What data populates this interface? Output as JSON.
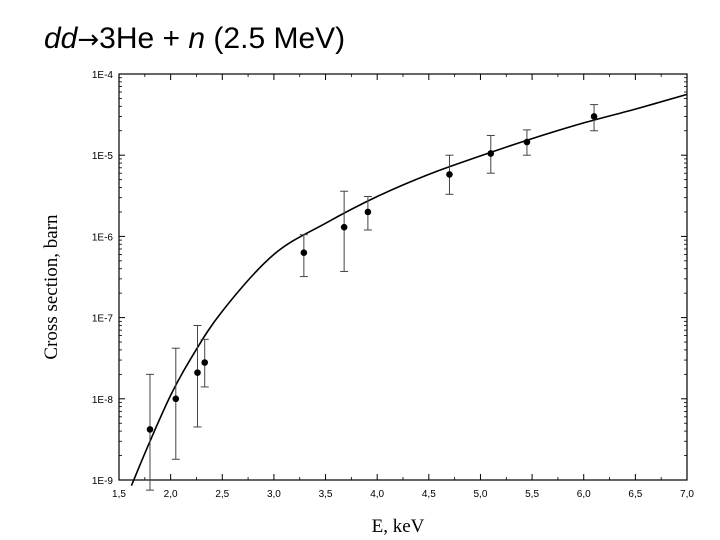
{
  "title": {
    "part1": "dd",
    "arrow": "→",
    "part2": "3He + ",
    "part3": "n",
    "part4": " (2.5 MeV)"
  },
  "chart_data": {
    "type": "scatter",
    "xlabel": "E, keV",
    "ylabel": "Cross section, barn",
    "xlim": [
      1.5,
      7.0
    ],
    "ylim": [
      1e-09,
      0.0001
    ],
    "yscale": "log",
    "grid": false,
    "x_ticks": [
      "1,5",
      "2,0",
      "2,5",
      "3,0",
      "3,5",
      "4,0",
      "4,5",
      "5,0",
      "5,5",
      "6,0",
      "6,5",
      "7,0"
    ],
    "y_ticks": [
      "1E-4",
      "1E-5",
      "1E-6",
      "1E-7",
      "1E-8",
      "1E-9"
    ],
    "points": [
      {
        "x": 1.8,
        "y": 4.2e-09,
        "ylo": 7.5e-10,
        "yhi": 2e-08
      },
      {
        "x": 2.05,
        "y": 1e-08,
        "ylo": 1.8e-09,
        "yhi": 4.2e-08
      },
      {
        "x": 2.26,
        "y": 2.1e-08,
        "ylo": 4.5e-09,
        "yhi": 8e-08
      },
      {
        "x": 2.33,
        "y": 2.8e-08,
        "ylo": 1.4e-08,
        "yhi": 5.4e-08
      },
      {
        "x": 3.29,
        "y": 6.3e-07,
        "ylo": 3.2e-07,
        "yhi": 1.05e-06
      },
      {
        "x": 3.68,
        "y": 1.3e-06,
        "ylo": 3.7e-07,
        "yhi": 3.6e-06
      },
      {
        "x": 3.91,
        "y": 2e-06,
        "ylo": 1.2e-06,
        "yhi": 3.1e-06
      },
      {
        "x": 4.7,
        "y": 5.8e-06,
        "ylo": 3.3e-06,
        "yhi": 1e-05
      },
      {
        "x": 5.1,
        "y": 1.05e-05,
        "ylo": 6e-06,
        "yhi": 1.75e-05
      },
      {
        "x": 5.45,
        "y": 1.45e-05,
        "ylo": 1e-05,
        "yhi": 2.05e-05
      },
      {
        "x": 6.1,
        "y": 3e-05,
        "ylo": 2e-05,
        "yhi": 4.2e-05
      }
    ],
    "fit_curve": {
      "x": [
        1.62,
        1.8,
        2.0,
        2.2,
        2.5,
        3.0,
        3.5,
        4.0,
        4.5,
        5.0,
        5.5,
        6.0,
        6.5,
        7.0
      ],
      "y": [
        8.5e-10,
        3e-09,
        1.1e-08,
        3.2e-08,
        1.2e-07,
        6e-07,
        1.45e-06,
        3.1e-06,
        5.8e-06,
        9.8e-06,
        1.6e-05,
        2.5e-05,
        3.7e-05,
        5.6e-05
      ]
    }
  }
}
